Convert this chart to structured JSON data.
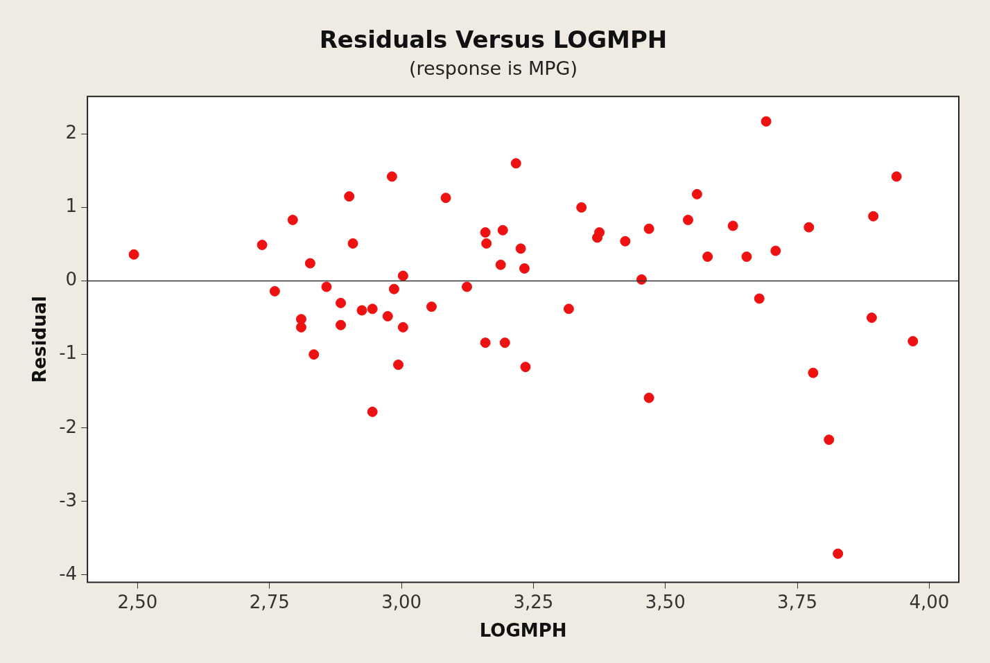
{
  "chart_data": {
    "type": "scatter",
    "title": "Residuals Versus LOGMPH",
    "subtitle": "(response is MPG)",
    "xlabel": "LOGMPH",
    "ylabel": "Residual",
    "x": [
      2.493,
      2.736,
      2.76,
      2.794,
      2.81,
      2.81,
      2.827,
      2.834,
      2.858,
      2.885,
      2.885,
      2.901,
      2.908,
      2.925,
      2.945,
      2.945,
      2.974,
      2.982,
      2.986,
      2.994,
      3.003,
      3.003,
      3.057,
      3.084,
      3.124,
      3.159,
      3.161,
      3.159,
      3.192,
      3.188,
      3.196,
      3.217,
      3.226,
      3.233,
      3.235,
      3.317,
      3.341,
      3.371,
      3.375,
      3.424,
      3.455,
      3.469,
      3.469,
      3.543,
      3.56,
      3.58,
      3.628,
      3.654,
      3.678,
      3.691,
      3.709,
      3.772,
      3.78,
      3.81,
      3.827,
      3.891,
      3.894,
      3.938,
      3.969
    ],
    "values": [
      0.36,
      0.49,
      -0.14,
      0.83,
      -0.52,
      -0.63,
      0.24,
      -1.0,
      -0.08,
      -0.3,
      -0.6,
      1.15,
      0.51,
      -0.4,
      -0.38,
      -1.78,
      -0.48,
      1.42,
      -0.11,
      -1.14,
      0.07,
      -0.63,
      -0.35,
      1.13,
      -0.08,
      0.66,
      0.51,
      -0.84,
      0.69,
      0.22,
      -0.84,
      1.6,
      0.44,
      0.17,
      -1.17,
      -0.38,
      1.0,
      0.59,
      0.66,
      0.54,
      0.02,
      0.71,
      -1.59,
      0.83,
      1.18,
      0.33,
      0.75,
      0.33,
      -0.24,
      2.17,
      0.41,
      0.73,
      -1.25,
      -2.16,
      -3.71,
      -0.5,
      0.88,
      1.42,
      -0.82
    ],
    "color": "#ee1111",
    "marker": "circle",
    "xlim": [
      2.405,
      4.056
    ],
    "ylim": [
      -4.1,
      2.51
    ],
    "xticks": [
      {
        "value": 2.5,
        "label": "2,50"
      },
      {
        "value": 2.75,
        "label": "2,75"
      },
      {
        "value": 3.0,
        "label": "3,00"
      },
      {
        "value": 3.25,
        "label": "3,25"
      },
      {
        "value": 3.5,
        "label": "3,50"
      },
      {
        "value": 3.75,
        "label": "3,75"
      },
      {
        "value": 4.0,
        "label": "4,00"
      }
    ],
    "yticks": [
      -4,
      -3,
      -2,
      -1,
      0,
      1,
      2
    ],
    "ref_lines": [
      {
        "axis": "y",
        "value": 0,
        "color": "#333333"
      }
    ],
    "grid": false,
    "legend": false
  }
}
